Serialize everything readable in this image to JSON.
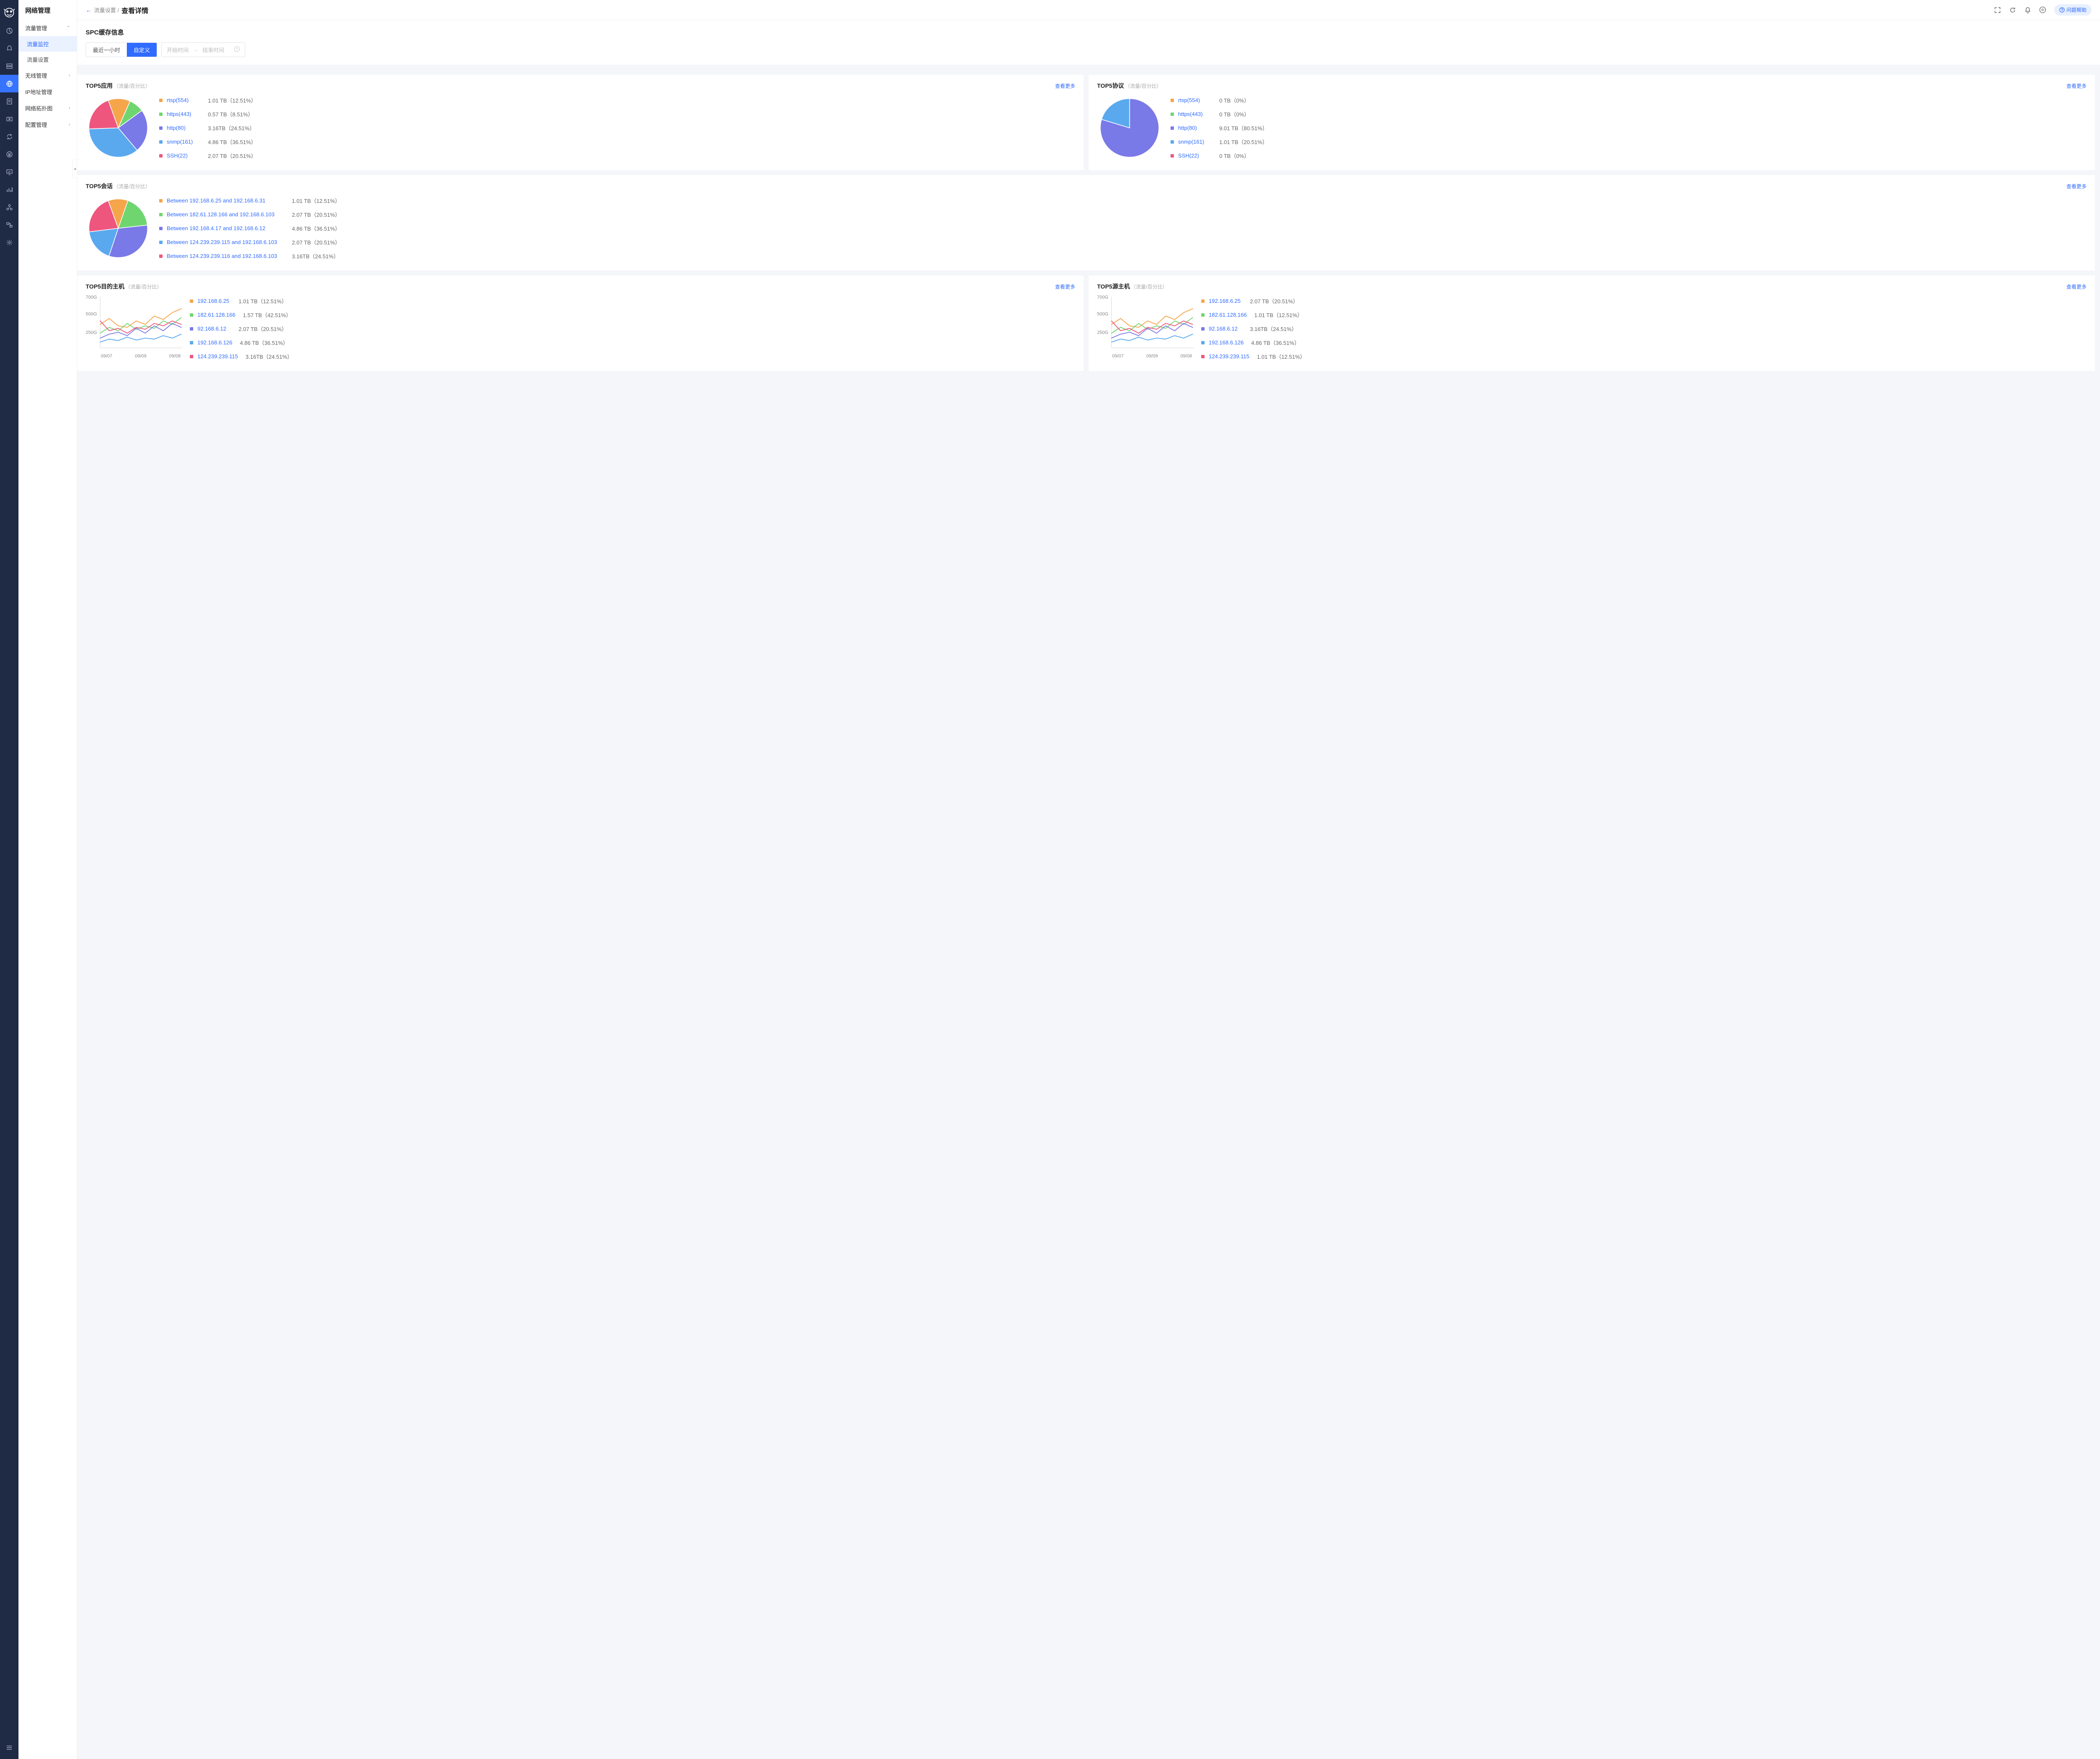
{
  "app_title": "网络管理",
  "rail_icons": [
    "pie",
    "bell",
    "server",
    "globe",
    "doc",
    "video",
    "cycle",
    "yen",
    "monitor",
    "bars",
    "nodes",
    "flow",
    "gear"
  ],
  "rail_active_index": 3,
  "sidebar": {
    "groups": [
      {
        "label": "流量管理",
        "expanded": true,
        "children": [
          {
            "label": "流量监控",
            "active": true
          },
          {
            "label": "流量设置",
            "active": false
          }
        ]
      },
      {
        "label": "无线管理",
        "expanded": false
      },
      {
        "label": "IP地址管理",
        "expanded": false,
        "no_chev": true
      },
      {
        "label": "网络拓扑图",
        "expanded": false
      },
      {
        "label": "配置管理",
        "expanded": false
      }
    ]
  },
  "breadcrumb": {
    "prev": "流量设置 /",
    "current": "查看详情"
  },
  "help_label": "问题帮助",
  "spc": {
    "title": "SPC缓存信息",
    "seg": [
      "最近一小时",
      "自定义"
    ],
    "seg_active": 1,
    "start_placeholder": "开始时间",
    "end_placeholder": "结束时间"
  },
  "colors": {
    "orange": "#f5a54a",
    "green": "#6fd66f",
    "purple": "#7a79e8",
    "blue": "#5aa9ef",
    "pink": "#ef567e",
    "link": "#2f6bff",
    "text_muted": "#666"
  },
  "card_more_label": "查看更多",
  "card_subtitle": "（流量/百分比）",
  "top5_apps": {
    "title": "TOP5应用",
    "items": [
      {
        "color": "#f5a54a",
        "label": "rtsp(554)",
        "val": "1.01 TB（12.51%）",
        "pct": 12.51
      },
      {
        "color": "#6fd66f",
        "label": "https(443)",
        "val": "0.57 TB（8.51%）",
        "pct": 8.51
      },
      {
        "color": "#7a79e8",
        "label": "http(80)",
        "val": "3.16TB（24.51%）",
        "pct": 24.51
      },
      {
        "color": "#5aa9ef",
        "label": "snmp(161)",
        "val": "4.86 TB（36.51%）",
        "pct": 36.51
      },
      {
        "color": "#ef567e",
        "label": "SSH(22)",
        "val": "2.07 TB（20.51%）",
        "pct": 20.51
      }
    ]
  },
  "top5_proto": {
    "title": "TOP5协议",
    "items": [
      {
        "color": "#f5a54a",
        "label": "rtsp(554)",
        "val": "0 TB（0%）",
        "pct": 0
      },
      {
        "color": "#6fd66f",
        "label": "https(443)",
        "val": "0 TB（0%）",
        "pct": 0
      },
      {
        "color": "#7a79e8",
        "label": "http(80)",
        "val": "9.01 TB（80.51%）",
        "pct": 80.51
      },
      {
        "color": "#5aa9ef",
        "label": "snmp(161)",
        "val": "1.01 TB（20.51%）",
        "pct": 20.51
      },
      {
        "color": "#ef567e",
        "label": "SSH(22)",
        "val": "0 TB（0%）",
        "pct": 0
      }
    ]
  },
  "top5_sessions": {
    "title": "TOP5会话",
    "items": [
      {
        "color": "#f5a54a",
        "label": "Between 192.168.6.25 and 192.168.6.31",
        "val": "1.01 TB（12.51%）",
        "pct": 12.51
      },
      {
        "color": "#6fd66f",
        "label": "Between 182.61.128.166 and 192.168.6.103",
        "val": "2.07 TB（20.51%）",
        "pct": 20.51
      },
      {
        "color": "#7a79e8",
        "label": "Between 192.168.4.17 and 192.168.6.12",
        "val": "4.86 TB（36.51%）",
        "pct": 36.51
      },
      {
        "color": "#5aa9ef",
        "label": "Between 124.239.239.115 and 192.168.6.103",
        "val": "2.07 TB（20.51%）",
        "pct": 20.51
      },
      {
        "color": "#ef567e",
        "label": "Between 124.239.239.116 and 192.168.6.103",
        "val": "3.16TB（24.51%）",
        "pct": 24.51
      }
    ]
  },
  "top5_dest": {
    "title": "TOP5目的主机",
    "yticks": [
      "700G",
      "500G",
      "250G"
    ],
    "xticks": [
      "09/07",
      "09/09",
      "09/08"
    ],
    "items": [
      {
        "color": "#f5a54a",
        "label": "192.168.6.25",
        "val": "1.01 TB（12.51%）"
      },
      {
        "color": "#6fd66f",
        "label": "182.61.128.166",
        "val": "1.57 TB（42.51%）"
      },
      {
        "color": "#7a79e8",
        "label": "92.168.6.12",
        "val": "2.07 TB（20.51%）"
      },
      {
        "color": "#5aa9ef",
        "label": "192.168.6.126",
        "val": "4.86 TB（36.51%）"
      },
      {
        "color": "#ef567e",
        "label": "124.239.239.115",
        "val": "3.16TB（24.51%）"
      }
    ],
    "series": [
      {
        "color": "#f5a54a",
        "pts": [
          48,
          60,
          45,
          42,
          55,
          48,
          65,
          58,
          72,
          80
        ]
      },
      {
        "color": "#6fd66f",
        "pts": [
          30,
          42,
          35,
          50,
          38,
          45,
          40,
          55,
          48,
          62
        ]
      },
      {
        "color": "#7a79e8",
        "pts": [
          20,
          28,
          32,
          25,
          40,
          30,
          45,
          35,
          50,
          42
        ]
      },
      {
        "color": "#5aa9ef",
        "pts": [
          12,
          18,
          15,
          22,
          16,
          20,
          18,
          25,
          20,
          28
        ]
      },
      {
        "color": "#ef567e",
        "pts": [
          55,
          35,
          40,
          30,
          42,
          38,
          50,
          45,
          55,
          48
        ]
      }
    ]
  },
  "top5_src": {
    "title": "TOP5源主机",
    "yticks": [
      "700G",
      "500G",
      "250G"
    ],
    "xticks": [
      "09/07",
      "09/09",
      "09/08"
    ],
    "items": [
      {
        "color": "#f5a54a",
        "label": "192.168.6.25",
        "val": "2.07 TB（20.51%）"
      },
      {
        "color": "#6fd66f",
        "label": "182.61.128.166",
        "val": "1.01 TB（12.51%）"
      },
      {
        "color": "#7a79e8",
        "label": "92.168.6.12",
        "val": "3.16TB（24.51%）"
      },
      {
        "color": "#5aa9ef",
        "label": "192.168.6.126",
        "val": "4.86 TB（36.51%）"
      },
      {
        "color": "#ef567e",
        "label": "124.239.239.115",
        "val": "1.01 TB（12.51%）"
      }
    ],
    "series": [
      {
        "color": "#f5a54a",
        "pts": [
          48,
          60,
          45,
          42,
          55,
          48,
          65,
          58,
          72,
          80
        ]
      },
      {
        "color": "#6fd66f",
        "pts": [
          30,
          42,
          35,
          50,
          38,
          45,
          40,
          55,
          48,
          62
        ]
      },
      {
        "color": "#7a79e8",
        "pts": [
          20,
          28,
          32,
          25,
          40,
          30,
          45,
          35,
          50,
          42
        ]
      },
      {
        "color": "#5aa9ef",
        "pts": [
          12,
          18,
          15,
          22,
          16,
          20,
          18,
          25,
          20,
          28
        ]
      },
      {
        "color": "#ef567e",
        "pts": [
          55,
          35,
          40,
          30,
          42,
          38,
          50,
          45,
          55,
          48
        ]
      }
    ]
  }
}
